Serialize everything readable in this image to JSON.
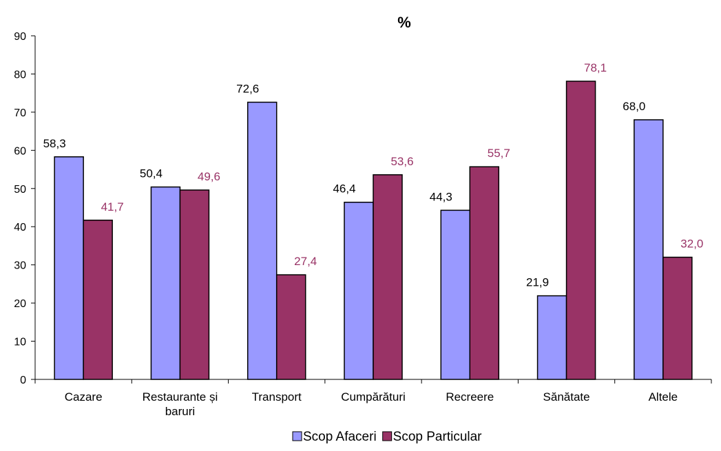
{
  "chart_data": {
    "type": "bar",
    "title": "%",
    "xlabel": "",
    "ylabel": "",
    "ylim": [
      0,
      90
    ],
    "yticks": [
      "0",
      "10",
      "20",
      "30",
      "40",
      "50",
      "60",
      "70",
      "80",
      "90"
    ],
    "grid": false,
    "legend_position": "bottom",
    "categories": [
      [
        "Cazare"
      ],
      [
        "Restaurante și",
        "baruri"
      ],
      [
        "Transport"
      ],
      [
        "Cumpărături"
      ],
      [
        "Recreere"
      ],
      [
        "Sănătate"
      ],
      [
        "Altele"
      ]
    ],
    "series": [
      {
        "name": "Scop Afaceri",
        "color": "#9999FF",
        "label_color": "#000000",
        "values": [
          58.3,
          50.4,
          72.6,
          46.4,
          44.3,
          21.9,
          68.0
        ],
        "labels": [
          "58,3",
          "50,4",
          "72,6",
          "46,4",
          "44,3",
          "21,9",
          "68,0"
        ]
      },
      {
        "name": "Scop Particular",
        "color": "#993366",
        "label_color": "#993366",
        "values": [
          41.7,
          49.6,
          27.4,
          53.6,
          55.7,
          78.1,
          32.0
        ],
        "labels": [
          "41,7",
          "49,6",
          "27,4",
          "53,6",
          "55,7",
          "78,1",
          "32,0"
        ]
      }
    ]
  }
}
